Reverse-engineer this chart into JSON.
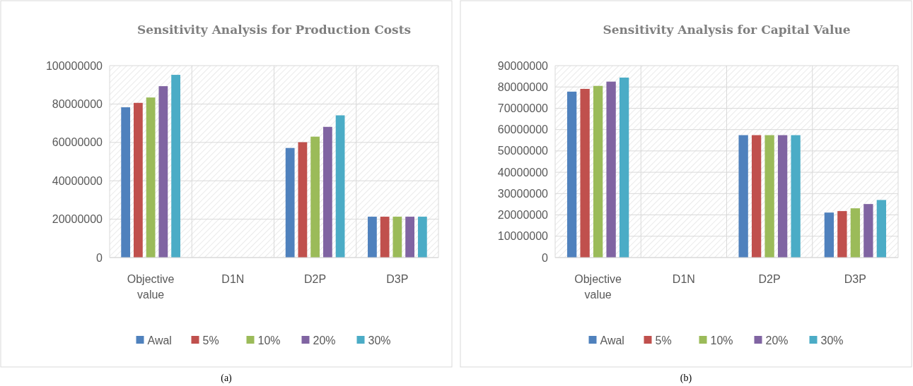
{
  "chart_data": [
    {
      "type": "bar",
      "title": "Sensitivity Analysis for Production Costs",
      "categories": [
        "Objective value",
        "D1N",
        "D2P",
        "D3P"
      ],
      "series": [
        {
          "name": "Awal",
          "color": "#4f81bd",
          "values": [
            78300000,
            0,
            57100000,
            21300000
          ]
        },
        {
          "name": "5%",
          "color": "#c0504d",
          "values": [
            80600000,
            0,
            60100000,
            21300000
          ]
        },
        {
          "name": "10%",
          "color": "#9bbb59",
          "values": [
            83400000,
            0,
            63000000,
            21300000
          ]
        },
        {
          "name": "20%",
          "color": "#8064a2",
          "values": [
            89300000,
            0,
            68100000,
            21300000
          ]
        },
        {
          "name": "30%",
          "color": "#4bacc6",
          "values": [
            95200000,
            0,
            74100000,
            21300000
          ]
        }
      ],
      "ylim": [
        0,
        100000000
      ],
      "yticks": [
        0,
        20000000,
        40000000,
        60000000,
        80000000,
        100000000
      ],
      "grid": true,
      "legend": "bottom",
      "annotations": [
        "(a)"
      ]
    },
    {
      "type": "bar",
      "title": "Sensitivity Analysis for Capital Value",
      "categories": [
        "Objective value",
        "D1N",
        "D2P",
        "D3P"
      ],
      "series": [
        {
          "name": "Awal",
          "color": "#4f81bd",
          "values": [
            77800000,
            0,
            57400000,
            21100000
          ]
        },
        {
          "name": "5%",
          "color": "#c0504d",
          "values": [
            79100000,
            0,
            57400000,
            21800000
          ]
        },
        {
          "name": "10%",
          "color": "#9bbb59",
          "values": [
            80500000,
            0,
            57400000,
            23100000
          ]
        },
        {
          "name": "20%",
          "color": "#8064a2",
          "values": [
            82500000,
            0,
            57400000,
            25100000
          ]
        },
        {
          "name": "30%",
          "color": "#4bacc6",
          "values": [
            84400000,
            0,
            57400000,
            27000000
          ]
        }
      ],
      "ylim": [
        0,
        90000000
      ],
      "yticks": [
        0,
        10000000,
        20000000,
        30000000,
        40000000,
        50000000,
        60000000,
        70000000,
        80000000,
        90000000
      ],
      "grid": true,
      "legend": "bottom",
      "annotations": [
        "(b)"
      ]
    }
  ]
}
